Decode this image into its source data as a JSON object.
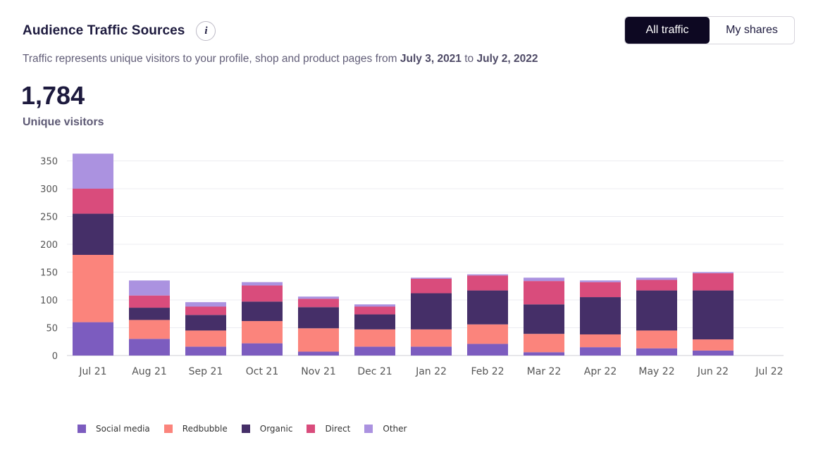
{
  "header": {
    "title": "Audience Traffic Sources",
    "info_label": "i",
    "toggle": [
      {
        "label": "All traffic",
        "active": true
      },
      {
        "label": "My shares",
        "active": false
      }
    ]
  },
  "subtitle": {
    "prefix": "Traffic represents unique visitors to your profile, shop and product pages from ",
    "start": "July 3, 2021",
    "mid": " to ",
    "end": "July 2, 2022"
  },
  "summary": {
    "value": "1,784",
    "label": "Unique visitors"
  },
  "colors": {
    "social": "#7c5cbf",
    "redbubble": "#fb847c",
    "organic": "#452f68",
    "direct": "#d94c7c",
    "other": "#ab92e0"
  },
  "chart_data": {
    "type": "bar",
    "stacked": true,
    "categories": [
      "Jul 21",
      "Aug 21",
      "Sep 21",
      "Oct 21",
      "Nov 21",
      "Dec 21",
      "Jan 22",
      "Feb 22",
      "Mar 22",
      "Apr 22",
      "May 22",
      "Jun 22",
      "Jul 22"
    ],
    "series": [
      {
        "name": "Social media",
        "color": "#7c5cbf",
        "values": [
          60,
          30,
          16,
          22,
          7,
          16,
          16,
          21,
          6,
          15,
          13,
          9,
          0
        ]
      },
      {
        "name": "Redbubble",
        "color": "#fb847c",
        "values": [
          121,
          34,
          29,
          40,
          42,
          31,
          31,
          35,
          33,
          23,
          32,
          20,
          0
        ]
      },
      {
        "name": "Organic",
        "color": "#452f68",
        "values": [
          74,
          22,
          28,
          35,
          38,
          27,
          65,
          61,
          53,
          67,
          72,
          88,
          0
        ]
      },
      {
        "name": "Direct",
        "color": "#d94c7c",
        "values": [
          45,
          22,
          15,
          29,
          15,
          14,
          26,
          27,
          42,
          27,
          19,
          31,
          0
        ]
      },
      {
        "name": "Other",
        "color": "#ab92e0",
        "values": [
          63,
          27,
          8,
          6,
          4,
          4,
          2,
          2,
          6,
          3,
          4,
          2,
          0
        ]
      }
    ],
    "yticks": [
      0,
      50,
      100,
      150,
      200,
      250,
      300,
      350
    ],
    "ylim": [
      0,
      365
    ],
    "grid": true,
    "legend": "bottom-left"
  }
}
